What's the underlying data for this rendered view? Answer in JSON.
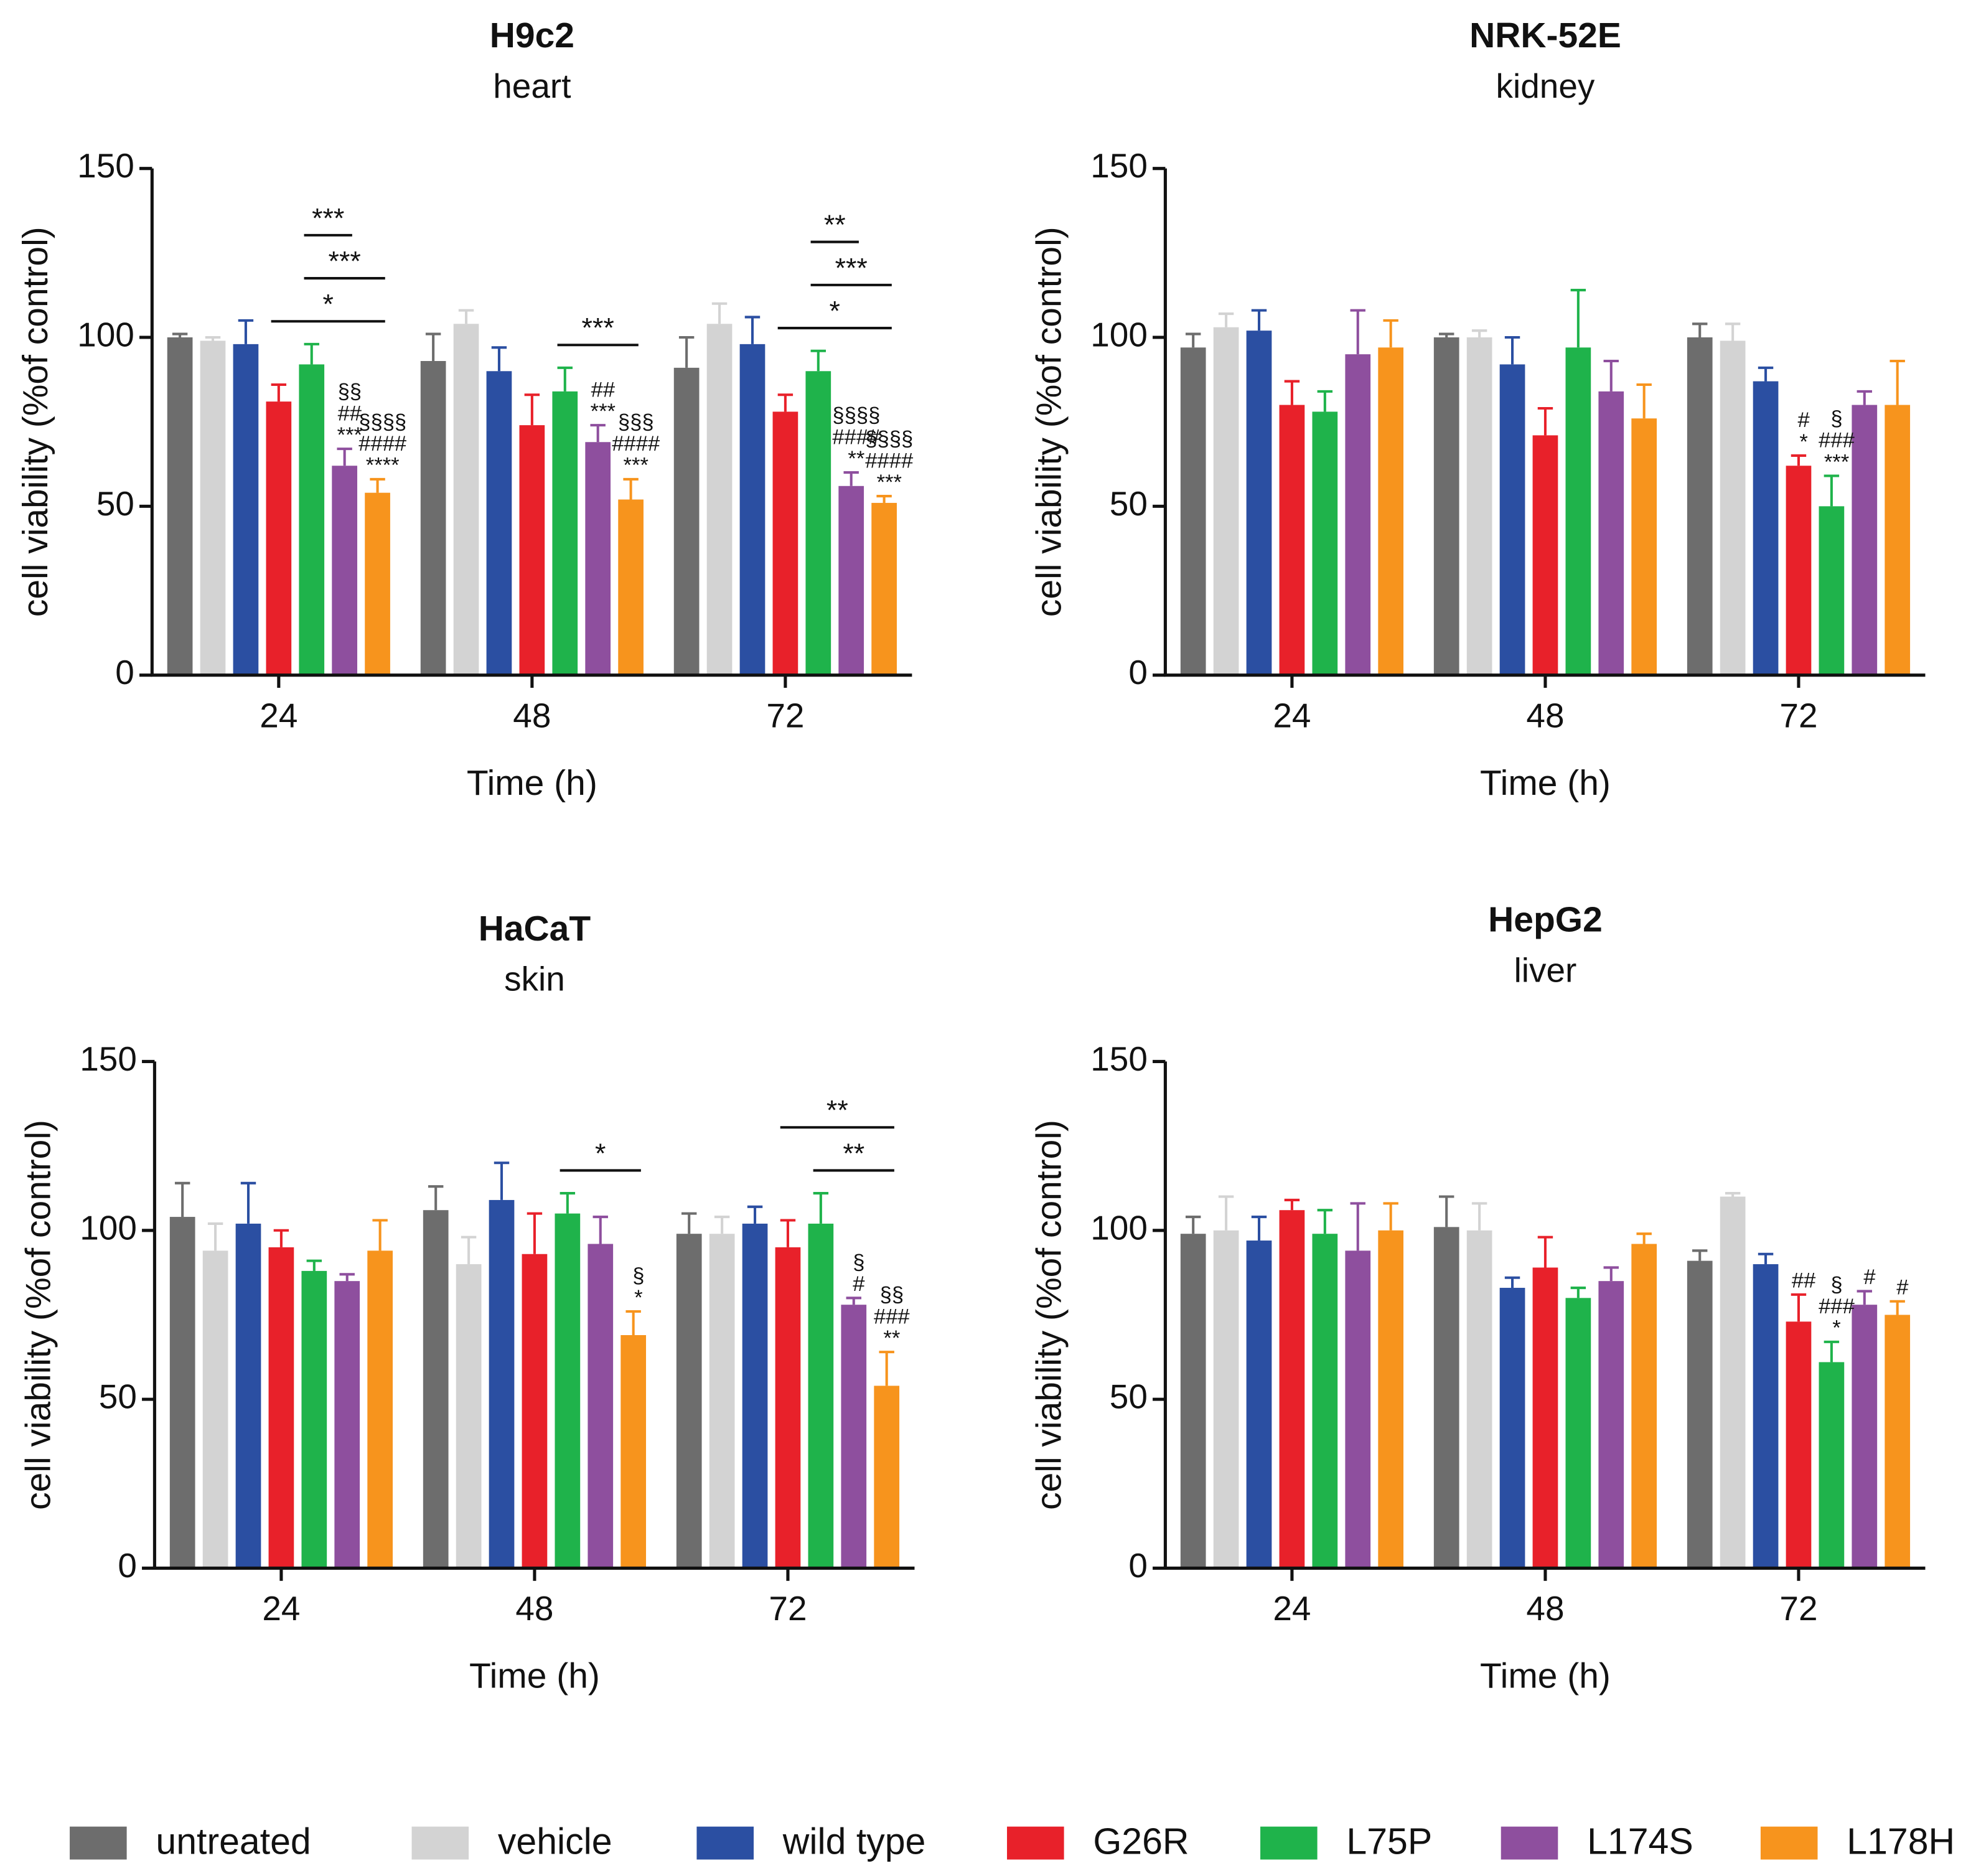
{
  "chart_data": [
    {
      "type": "bar",
      "title": "H9c2",
      "subtitle": "heart",
      "xlabel": "Time (h)",
      "ylabel": "cell viability (%of control)",
      "categories": [
        "24",
        "48",
        "72"
      ],
      "ylim": [
        0,
        150
      ],
      "yticks": [
        0,
        50,
        100,
        150
      ],
      "series": [
        {
          "name": "untreated",
          "color": "#6d6d6d",
          "values": [
            100,
            93,
            91
          ],
          "errors": [
            1,
            8,
            9
          ]
        },
        {
          "name": "vehicle",
          "color": "#d3d3d3",
          "values": [
            99,
            104,
            104
          ],
          "errors": [
            1,
            4,
            6
          ]
        },
        {
          "name": "wild type",
          "color": "#2b4fa2",
          "values": [
            98,
            90,
            98
          ],
          "errors": [
            7,
            7,
            8
          ]
        },
        {
          "name": "G26R",
          "color": "#e8212a",
          "values": [
            81,
            74,
            78
          ],
          "errors": [
            5,
            9,
            5
          ]
        },
        {
          "name": "L75P",
          "color": "#1fb34b",
          "values": [
            92,
            84,
            90
          ],
          "errors": [
            6,
            7,
            6
          ]
        },
        {
          "name": "L174S",
          "color": "#8e4f9e",
          "values": [
            62,
            69,
            56
          ],
          "errors": [
            5,
            5,
            4
          ]
        },
        {
          "name": "L178H",
          "color": "#f7941d",
          "values": [
            54,
            52,
            51
          ],
          "errors": [
            4,
            6,
            2
          ]
        }
      ],
      "annotations": [
        {
          "category": "24",
          "series": "L174S",
          "lines": [
            "§§",
            "##",
            "***"
          ]
        },
        {
          "category": "24",
          "series": "L178H",
          "lines": [
            "§§§§",
            "####",
            "****"
          ]
        },
        {
          "category": "48",
          "series": "L174S",
          "lines": [
            "##",
            "***"
          ]
        },
        {
          "category": "48",
          "series": "L178H",
          "lines": [
            "§§§",
            "####",
            "***"
          ]
        },
        {
          "category": "72",
          "series": "L174S",
          "lines": [
            "§§§§",
            "####",
            "**"
          ]
        },
        {
          "category": "72",
          "series": "L178H",
          "lines": [
            "§§§§",
            "####",
            "***"
          ]
        }
      ],
      "brackets": [
        {
          "category": "24",
          "from": "G26R",
          "to": "L178H",
          "text": "*"
        },
        {
          "category": "24",
          "from": "L75P",
          "to": "L178H",
          "text": "***"
        },
        {
          "category": "24",
          "from": "L75P",
          "to": "L174S",
          "text": "***"
        },
        {
          "category": "48",
          "from": "L75P",
          "to": "L178H",
          "text": "***"
        },
        {
          "category": "72",
          "from": "G26R",
          "to": "L178H",
          "text": "*"
        },
        {
          "category": "72",
          "from": "L75P",
          "to": "L178H",
          "text": "***"
        },
        {
          "category": "72",
          "from": "L75P",
          "to": "L174S",
          "text": "**"
        }
      ]
    },
    {
      "type": "bar",
      "title": "NRK-52E",
      "subtitle": "kidney",
      "xlabel": "Time (h)",
      "ylabel": "cell viability (%of control)",
      "categories": [
        "24",
        "48",
        "72"
      ],
      "ylim": [
        0,
        150
      ],
      "yticks": [
        0,
        50,
        100,
        150
      ],
      "series": [
        {
          "name": "untreated",
          "color": "#6d6d6d",
          "values": [
            97,
            100,
            100
          ],
          "errors": [
            4,
            1,
            4
          ]
        },
        {
          "name": "vehicle",
          "color": "#d3d3d3",
          "values": [
            103,
            100,
            99
          ],
          "errors": [
            4,
            2,
            5
          ]
        },
        {
          "name": "wild type",
          "color": "#2b4fa2",
          "values": [
            102,
            92,
            87
          ],
          "errors": [
            6,
            8,
            4
          ]
        },
        {
          "name": "G26R",
          "color": "#e8212a",
          "values": [
            80,
            71,
            62
          ],
          "errors": [
            7,
            8,
            3
          ]
        },
        {
          "name": "L75P",
          "color": "#1fb34b",
          "values": [
            78,
            97,
            50
          ],
          "errors": [
            6,
            17,
            9
          ]
        },
        {
          "name": "L174S",
          "color": "#8e4f9e",
          "values": [
            95,
            84,
            80
          ],
          "errors": [
            13,
            9,
            4
          ]
        },
        {
          "name": "L178H",
          "color": "#f7941d",
          "values": [
            97,
            76,
            80
          ],
          "errors": [
            8,
            10,
            13
          ]
        }
      ],
      "annotations": [
        {
          "category": "72",
          "series": "G26R",
          "lines": [
            "#",
            "*"
          ]
        },
        {
          "category": "72",
          "series": "L75P",
          "lines": [
            "§",
            "###",
            "***"
          ]
        }
      ],
      "brackets": []
    },
    {
      "type": "bar",
      "title": "HaCaT",
      "subtitle": "skin",
      "xlabel": "Time (h)",
      "ylabel": "cell viability (%of control)",
      "categories": [
        "24",
        "48",
        "72"
      ],
      "ylim": [
        0,
        150
      ],
      "yticks": [
        0,
        50,
        100,
        150
      ],
      "series": [
        {
          "name": "untreated",
          "color": "#6d6d6d",
          "values": [
            104,
            106,
            99
          ],
          "errors": [
            10,
            7,
            6
          ]
        },
        {
          "name": "vehicle",
          "color": "#d3d3d3",
          "values": [
            94,
            90,
            99
          ],
          "errors": [
            8,
            8,
            5
          ]
        },
        {
          "name": "wild type",
          "color": "#2b4fa2",
          "values": [
            102,
            109,
            102
          ],
          "errors": [
            12,
            11,
            5
          ]
        },
        {
          "name": "G26R",
          "color": "#e8212a",
          "values": [
            95,
            93,
            95
          ],
          "errors": [
            5,
            12,
            8
          ]
        },
        {
          "name": "L75P",
          "color": "#1fb34b",
          "values": [
            88,
            105,
            102
          ],
          "errors": [
            3,
            6,
            9
          ]
        },
        {
          "name": "L174S",
          "color": "#8e4f9e",
          "values": [
            85,
            96,
            78
          ],
          "errors": [
            2,
            8,
            2
          ]
        },
        {
          "name": "L178H",
          "color": "#f7941d",
          "values": [
            94,
            69,
            54
          ],
          "errors": [
            9,
            7,
            10
          ]
        }
      ],
      "annotations": [
        {
          "category": "48",
          "series": "L178H",
          "lines": [
            "§",
            "*"
          ]
        },
        {
          "category": "72",
          "series": "L174S",
          "lines": [
            "§",
            "#"
          ]
        },
        {
          "category": "72",
          "series": "L178H",
          "lines": [
            "§§",
            "###",
            "**"
          ]
        }
      ],
      "brackets": [
        {
          "category": "48",
          "from": "L75P",
          "to": "L178H",
          "text": "*"
        },
        {
          "category": "72",
          "from": "L75P",
          "to": "L178H",
          "text": "**"
        },
        {
          "category": "72",
          "from": "G26R",
          "to": "L178H",
          "text": "**"
        }
      ]
    },
    {
      "type": "bar",
      "title": "HepG2",
      "subtitle": "liver",
      "xlabel": "Time (h)",
      "ylabel": "cell viability (%of control)",
      "categories": [
        "24",
        "48",
        "72"
      ],
      "ylim": [
        0,
        150
      ],
      "yticks": [
        0,
        50,
        100,
        150
      ],
      "series": [
        {
          "name": "untreated",
          "color": "#6d6d6d",
          "values": [
            99,
            101,
            91
          ],
          "errors": [
            5,
            9,
            3
          ]
        },
        {
          "name": "vehicle",
          "color": "#d3d3d3",
          "values": [
            100,
            100,
            110
          ],
          "errors": [
            10,
            8,
            1
          ]
        },
        {
          "name": "wild type",
          "color": "#2b4fa2",
          "values": [
            97,
            83,
            90
          ],
          "errors": [
            7,
            3,
            3
          ]
        },
        {
          "name": "G26R",
          "color": "#e8212a",
          "values": [
            106,
            89,
            73
          ],
          "errors": [
            3,
            9,
            8
          ]
        },
        {
          "name": "L75P",
          "color": "#1fb34b",
          "values": [
            99,
            80,
            61
          ],
          "errors": [
            7,
            3,
            6
          ]
        },
        {
          "name": "L174S",
          "color": "#8e4f9e",
          "values": [
            94,
            85,
            78
          ],
          "errors": [
            14,
            4,
            4
          ]
        },
        {
          "name": "L178H",
          "color": "#f7941d",
          "values": [
            100,
            96,
            75
          ],
          "errors": [
            8,
            3,
            4
          ]
        }
      ],
      "annotations": [
        {
          "category": "72",
          "series": "G26R",
          "lines": [
            "##"
          ]
        },
        {
          "category": "72",
          "series": "L75P",
          "lines": [
            "§",
            "###",
            "*"
          ]
        },
        {
          "category": "72",
          "series": "L174S",
          "lines": [
            "#"
          ]
        },
        {
          "category": "72",
          "series": "L178H",
          "lines": [
            "#"
          ]
        }
      ],
      "brackets": []
    }
  ]
}
